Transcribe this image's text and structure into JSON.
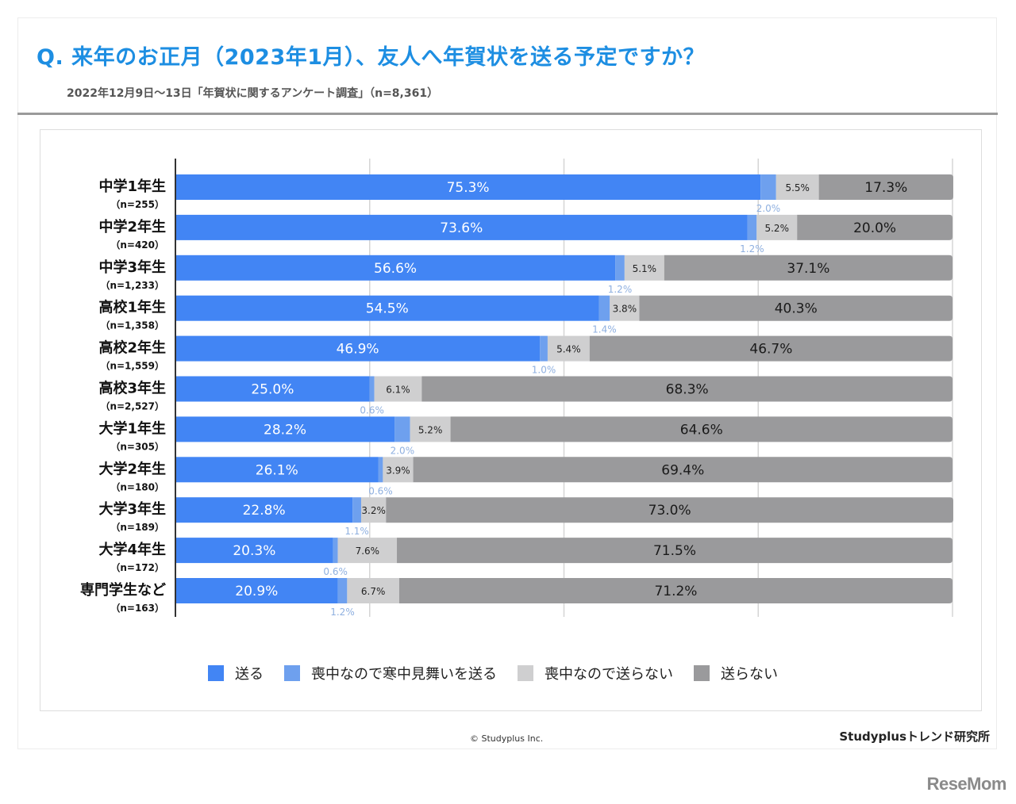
{
  "header": {
    "title": "Q. 来年のお正月（2023年1月）、友人へ年賀状を送る予定ですか？",
    "subtitle": "2022年12月9日～13日「年賀状に関するアンケート調査」（n=8,361）"
  },
  "footer": {
    "copyright": "© Studyplus Inc.",
    "brand": "Studyplusトレンド研究所",
    "watermark": "ReseMom"
  },
  "colors": {
    "title": "#1d8ee2",
    "send": "#4285f4",
    "mourning_card": "#6ea0ee",
    "mourning_no": "#cfcfd0",
    "no_send": "#9a9a9c",
    "small_label": "#8fb0e0"
  },
  "chart_data": {
    "type": "bar",
    "orientation": "horizontal-stacked-100",
    "title": "Q. 来年のお正月（2023年1月）、友人へ年賀状を送る予定ですか？",
    "xlabel": "",
    "ylabel": "",
    "xlim": [
      0,
      100
    ],
    "gridlines": [
      0,
      25,
      50,
      75,
      100
    ],
    "grid": true,
    "legend_position": "bottom",
    "categories": [
      "中学1年生",
      "中学2年生",
      "中学3年生",
      "高校1年生",
      "高校2年生",
      "高校3年生",
      "大学1年生",
      "大学2年生",
      "大学3年生",
      "大学4年生",
      "専門学生など"
    ],
    "sample_sizes": [
      "（n=255）",
      "（n=420）",
      "（n=1,233）",
      "（n=1,358）",
      "（n=1,559）",
      "（n=2,527）",
      "（n=305）",
      "（n=180）",
      "（n=189）",
      "（n=172）",
      "（n=163）"
    ],
    "series": [
      {
        "name": "送る",
        "color": "#4285f4",
        "values": [
          75.3,
          73.6,
          56.6,
          54.5,
          46.9,
          25.0,
          28.2,
          26.1,
          22.8,
          20.3,
          20.9
        ]
      },
      {
        "name": "喪中なので寒中見舞いを送る",
        "color": "#6ea0ee",
        "values": [
          2.0,
          1.2,
          1.2,
          1.4,
          1.0,
          0.6,
          2.0,
          0.6,
          1.1,
          0.6,
          1.2
        ]
      },
      {
        "name": "喪中なので送らない",
        "color": "#cfcfd0",
        "values": [
          5.5,
          5.2,
          5.1,
          3.8,
          5.4,
          6.1,
          5.2,
          3.9,
          3.2,
          7.6,
          6.7
        ]
      },
      {
        "name": "送らない",
        "color": "#9a9a9c",
        "values": [
          17.3,
          20.0,
          37.1,
          40.3,
          46.7,
          68.3,
          64.6,
          69.4,
          73.0,
          71.5,
          71.2
        ]
      }
    ]
  }
}
